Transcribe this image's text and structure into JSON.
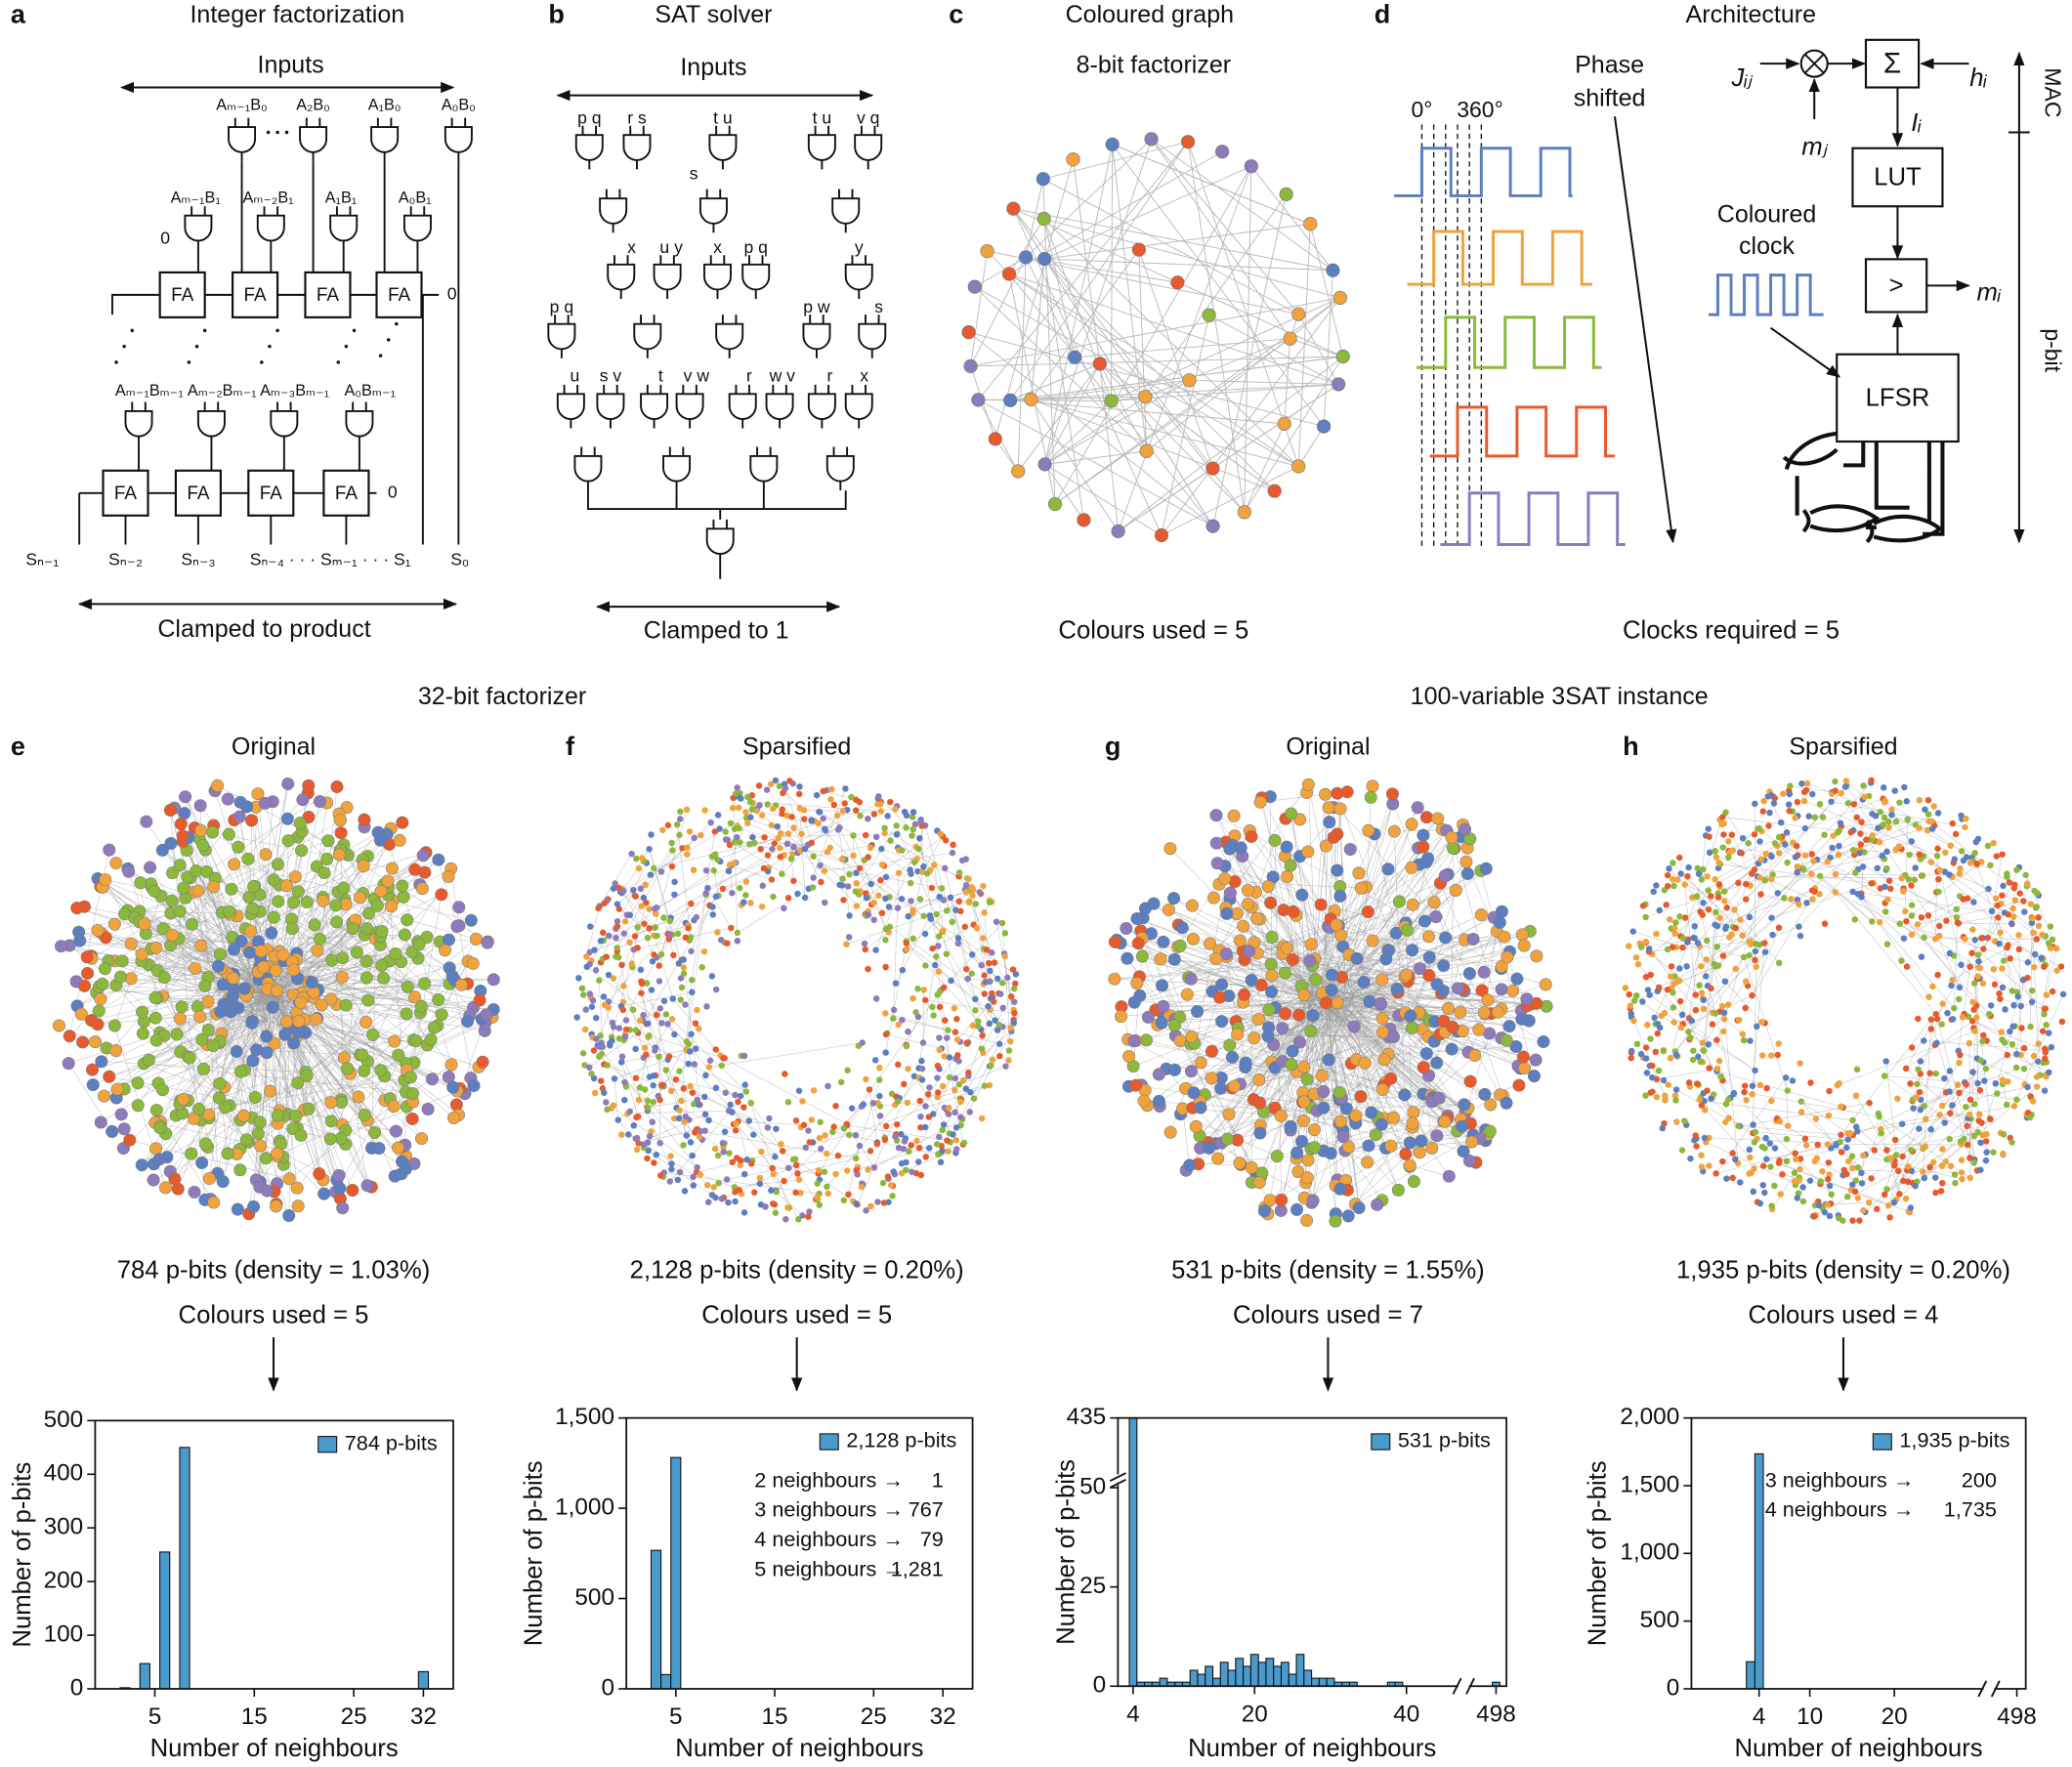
{
  "panels": {
    "a": {
      "letter": "a",
      "title": "Integer factorization",
      "inputs": "Inputs",
      "row0": [
        "Aₘ₋₁B₀",
        "A₂B₀",
        "A₁B₀",
        "A₀B₀"
      ],
      "row1": [
        "Aₘ₋₁B₁",
        "Aₘ₋₂B₁",
        "A₁B₁",
        "A₀B₁"
      ],
      "row2": [
        "Aₘ₋₁Bₘ₋₁",
        "Aₘ₋₂Bₘ₋₁",
        "Aₘ₋₃Bₘ₋₁",
        "A₀Bₘ₋₁"
      ],
      "fa": "FA",
      "zero": "0",
      "outputs": [
        "Sₙ₋₁",
        "Sₙ₋₂",
        "Sₙ₋₃",
        "Sₙ₋₄ · · · Sₘ₋₁ · · · S₁",
        "S₀"
      ],
      "clamp": "Clamped to product"
    },
    "b": {
      "letter": "b",
      "title": "SAT solver",
      "inputs": "Inputs",
      "gate_inputs": [
        "p q",
        "r s",
        "t u",
        "t u",
        "v q",
        "s",
        "x",
        "u y",
        "x",
        "p q",
        "y",
        "p q",
        "p w",
        "s",
        "u",
        "s v",
        "t",
        "v w",
        "r",
        "w v",
        "r",
        "x"
      ],
      "clamp": "Clamped to 1"
    },
    "c": {
      "letter": "c",
      "title": "Coloured graph",
      "subtitle": "8-bit factorizer",
      "colours": "Colours used = 5"
    },
    "d": {
      "letter": "d",
      "title": "Architecture",
      "phase": [
        "Phase",
        "shifted"
      ],
      "deg0": "0°",
      "deg360": "360°",
      "clock": [
        "Coloured",
        "clock"
      ],
      "clocks": "Clocks required = 5",
      "J": "Jᵢⱼ",
      "h": "hᵢ",
      "mj": "mⱼ",
      "I": "Iᵢ",
      "mi": "mᵢ",
      "sigma": "Σ",
      "lut": "LUT",
      "cmp": ">",
      "lfsr": "LFSR",
      "mac": "MAC",
      "pbit": "p-bit"
    }
  },
  "groups": [
    "32-bit factorizer",
    "100-variable 3SAT instance"
  ],
  "networks": [
    {
      "letter": "e",
      "title": "Original",
      "pbits": "784 p-bits (density = 1.03%)",
      "colours": "Colours used = 5"
    },
    {
      "letter": "f",
      "title": "Sparsified",
      "pbits": "2,128 p-bits (density = 0.20%)",
      "colours": "Colours used = 5"
    },
    {
      "letter": "g",
      "title": "Original",
      "pbits": "531 p-bits (density = 1.55%)",
      "colours": "Colours used = 7"
    },
    {
      "letter": "h",
      "title": "Sparsified",
      "pbits": "1,935 p-bits (density = 0.20%)",
      "colours": "Colours used = 4"
    }
  ],
  "chart_data": [
    {
      "type": "bar",
      "xlabel": "Number of neighbours",
      "ylabel": "Number of p-bits",
      "x": [
        2,
        4,
        6,
        8,
        32
      ],
      "series": [
        {
          "name": "784 p-bits",
          "color": "#4a9acb",
          "values": [
            2,
            47,
            255,
            450,
            32
          ]
        }
      ],
      "xlim": [
        -1,
        35
      ],
      "ylim": [
        0,
        500
      ],
      "xticks": [
        5,
        15,
        25,
        32
      ],
      "yticks": [
        0,
        100,
        200,
        300,
        400,
        500
      ]
    },
    {
      "type": "bar",
      "xlabel": "Number of neighbours",
      "ylabel": "Number of p-bits",
      "x": [
        2,
        3,
        4,
        5
      ],
      "series": [
        {
          "name": "2,128 p-bits",
          "color": "#4a9acb",
          "values": [
            1,
            767,
            79,
            1281
          ],
          "value_labels": [
            "1",
            "767",
            "79",
            "1,281"
          ]
        }
      ],
      "annotations": [
        "2 neighbours →",
        "3 neighbours →",
        "4 neighbours →",
        "5 neighbours →"
      ],
      "xlim": [
        0,
        35
      ],
      "ylim": [
        0,
        1500
      ],
      "xticks": [
        5,
        15,
        25,
        32
      ],
      "yticks": [
        0,
        500,
        {
          "value": 1000,
          "label": "1,000"
        },
        {
          "value": 1500,
          "label": "1,500"
        }
      ]
    },
    {
      "type": "bar",
      "xlabel": "Number of neighbours",
      "ylabel": "Number of p-bits",
      "x": [
        4,
        5,
        6,
        7,
        8,
        9,
        10,
        11,
        12,
        13,
        14,
        15,
        16,
        17,
        18,
        19,
        20,
        21,
        22,
        23,
        24,
        25,
        26,
        27,
        28,
        29,
        30,
        31,
        32,
        33,
        38,
        39,
        498
      ],
      "series": [
        {
          "name": "531 p-bits",
          "color": "#4a9acb",
          "values": [
            435,
            1,
            1,
            1,
            2,
            1,
            1,
            1,
            4,
            3,
            5,
            2,
            6,
            4,
            7,
            5,
            8,
            6,
            7,
            5,
            6,
            3,
            8,
            4,
            2,
            2,
            2,
            1,
            1,
            1,
            1,
            1,
            1
          ]
        }
      ],
      "xlim": [
        2,
        500
      ],
      "xbreak": [
        46,
        494
      ],
      "ylim": [
        0,
        435
      ],
      "ybreak": 50,
      "xticks": [
        4,
        20,
        40,
        498
      ],
      "yticks": [
        0,
        25,
        50,
        435
      ]
    },
    {
      "type": "bar",
      "xlabel": "Number of neighbours",
      "ylabel": "Number of p-bits",
      "x": [
        3,
        4
      ],
      "series": [
        {
          "name": "1,935 p-bits",
          "color": "#4a9acb",
          "values": [
            200,
            1735
          ],
          "value_labels": [
            "200",
            "1,735"
          ]
        }
      ],
      "annotations": [
        "3 neighbours →",
        "4 neighbours →"
      ],
      "xlim": [
        -4,
        500
      ],
      "xbreak": [
        30,
        494
      ],
      "ylim": [
        0,
        2000
      ],
      "xticks": [
        4,
        10,
        20,
        498
      ],
      "yticks": [
        0,
        500,
        {
          "value": 1000,
          "label": "1,000"
        },
        {
          "value": 1500,
          "label": "1,500"
        },
        {
          "value": 2000,
          "label": "2,000"
        }
      ]
    }
  ]
}
